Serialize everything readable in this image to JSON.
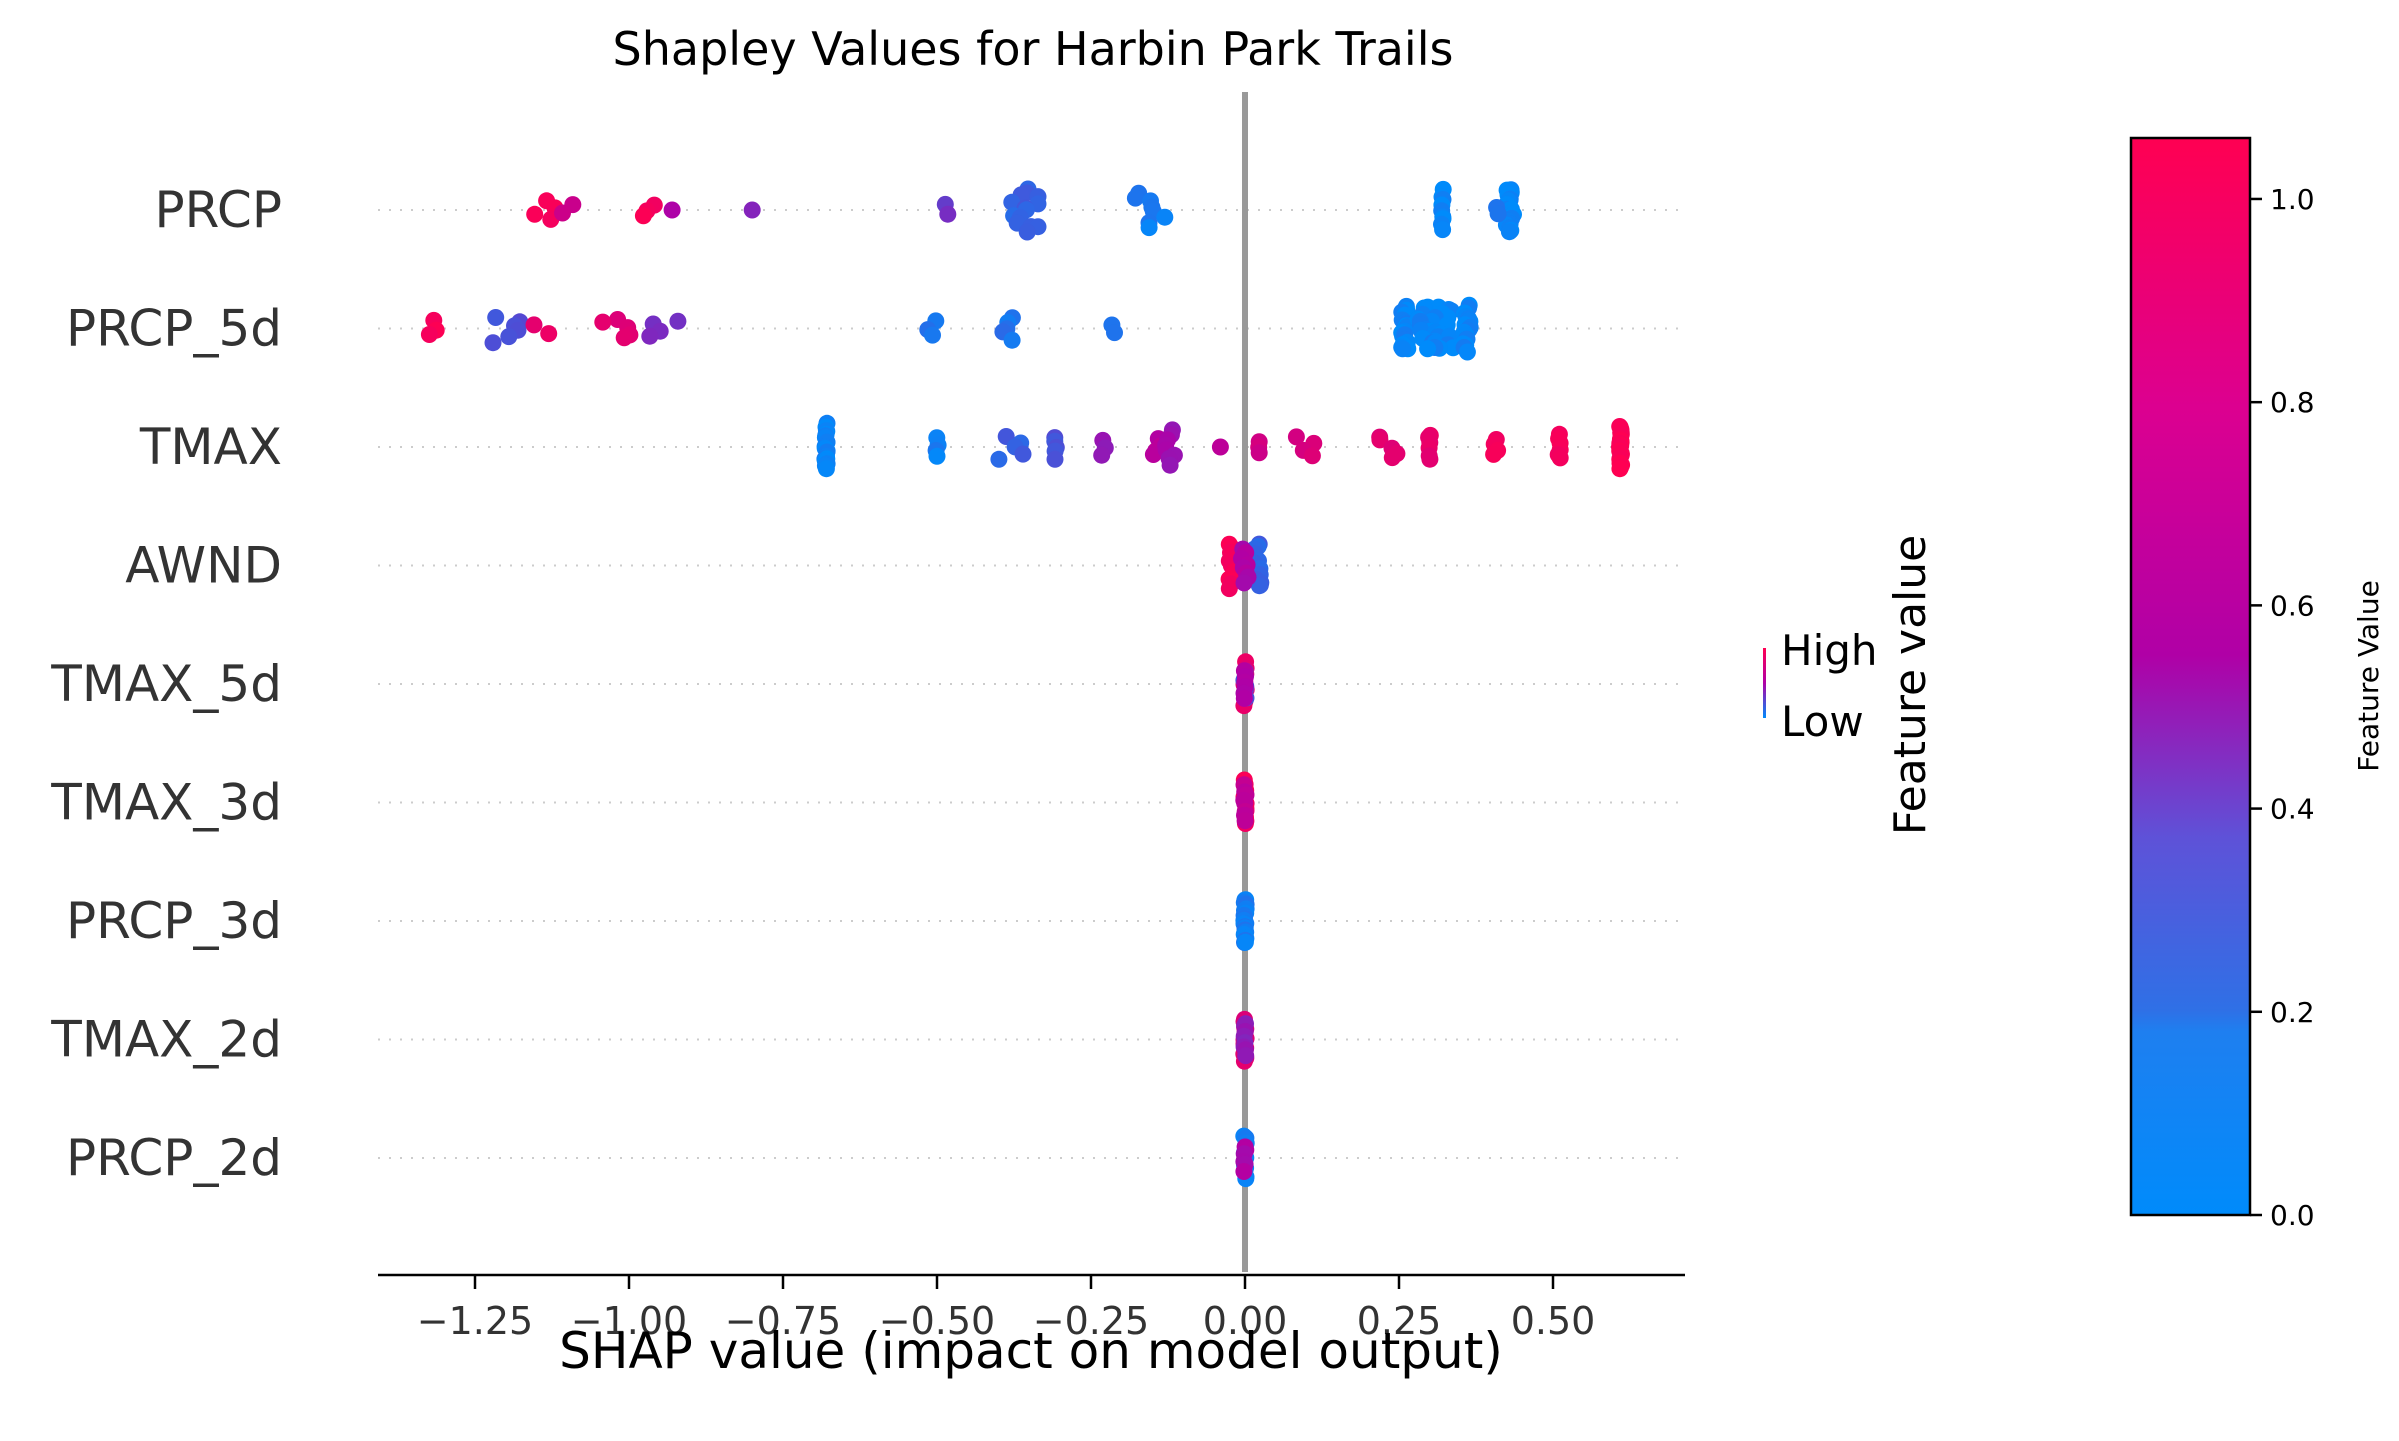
{
  "chart_data": {
    "type": "scatter",
    "title": "Shapley Values for Harbin Park Trails",
    "xlabel": "SHAP value (impact on model output)",
    "xlim": [
      -1.42,
      0.71
    ],
    "xticks": [
      -1.25,
      -1.0,
      -0.75,
      -0.5,
      -0.25,
      0.0,
      0.25,
      0.5
    ],
    "xtick_labels": [
      "−1.25",
      "−1.00",
      "−0.75",
      "−0.50",
      "−0.25",
      "0.00",
      "0.25",
      "0.50"
    ],
    "grid": "dotted horizontal lines per feature",
    "legend": {
      "high_label": "High",
      "low_label": "Low",
      "title": "Feature value",
      "placement": "right"
    },
    "colorbar": {
      "label": "Feature Value",
      "min": 0.0,
      "max": 1.06,
      "ticks": [
        0.0,
        0.2,
        0.4,
        0.6,
        0.8,
        1.0
      ],
      "tick_labels": [
        "0.0",
        "0.2",
        "0.4",
        "0.6",
        "0.8",
        "1.0"
      ],
      "low_color": "#008bfb",
      "mid_color": "#b000a6",
      "high_color": "#ff0052"
    },
    "features": [
      {
        "name": "PRCP",
        "groups": [
          {
            "x": -1.14,
            "v": 0.95,
            "n": 4,
            "s": 0.02
          },
          {
            "x": -1.1,
            "v": 0.65,
            "n": 2,
            "s": 0.015
          },
          {
            "x": -0.97,
            "v": 0.95,
            "n": 3,
            "s": 0.015
          },
          {
            "x": -0.93,
            "v": 0.5,
            "n": 1,
            "s": 0
          },
          {
            "x": -0.8,
            "v": 0.35,
            "n": 1,
            "s": 0
          },
          {
            "x": -0.48,
            "v": 0.3,
            "n": 2,
            "s": 0.01
          },
          {
            "x": -0.35,
            "v": 0.15,
            "n": 14,
            "s": 0.035
          },
          {
            "x": -0.16,
            "v": 0.05,
            "n": 8,
            "s": 0.03
          },
          {
            "x": 0.32,
            "v": 0.02,
            "n": 9,
            "s": 0.002
          },
          {
            "x": 0.43,
            "v": 0.02,
            "n": 25,
            "s": 0.006
          },
          {
            "x": 0.41,
            "v": 0.05,
            "n": 2,
            "s": 0.004
          }
        ]
      },
      {
        "name": "PRCP_5d",
        "groups": [
          {
            "x": -1.31,
            "v": 0.95,
            "n": 3,
            "s": 0.015
          },
          {
            "x": -1.2,
            "v": 0.2,
            "n": 6,
            "s": 0.025
          },
          {
            "x": -1.14,
            "v": 0.85,
            "n": 2,
            "s": 0.015
          },
          {
            "x": -1.02,
            "v": 0.8,
            "n": 5,
            "s": 0.03
          },
          {
            "x": -0.94,
            "v": 0.35,
            "n": 4,
            "s": 0.03
          },
          {
            "x": -0.51,
            "v": 0.1,
            "n": 3,
            "s": 0.01
          },
          {
            "x": -0.39,
            "v": 0.08,
            "n": 5,
            "s": 0.02
          },
          {
            "x": -0.21,
            "v": 0.05,
            "n": 2,
            "s": 0.01
          },
          {
            "x": 0.26,
            "v": 0.02,
            "n": 20,
            "s": 0.006
          },
          {
            "x": 0.31,
            "v": 0.02,
            "n": 30,
            "s": 0.03
          },
          {
            "x": 0.36,
            "v": 0.02,
            "n": 20,
            "s": 0.006
          }
        ]
      },
      {
        "name": "TMAX",
        "groups": [
          {
            "x": -0.68,
            "v": 0.02,
            "n": 20,
            "s": 0.002
          },
          {
            "x": -0.5,
            "v": 0.05,
            "n": 4,
            "s": 0.002
          },
          {
            "x": -0.38,
            "v": 0.15,
            "n": 5,
            "s": 0.02
          },
          {
            "x": -0.31,
            "v": 0.2,
            "n": 5,
            "s": 0.004
          },
          {
            "x": -0.23,
            "v": 0.4,
            "n": 3,
            "s": 0.004
          },
          {
            "x": -0.14,
            "v": 0.55,
            "n": 4,
            "s": 0.01
          },
          {
            "x": -0.12,
            "v": 0.45,
            "n": 8,
            "s": 0.01
          },
          {
            "x": -0.04,
            "v": 0.6,
            "n": 1,
            "s": 0
          },
          {
            "x": 0.02,
            "v": 0.7,
            "n": 3,
            "s": 0.004
          },
          {
            "x": 0.1,
            "v": 0.75,
            "n": 4,
            "s": 0.02
          },
          {
            "x": 0.23,
            "v": 0.8,
            "n": 5,
            "s": 0.02
          },
          {
            "x": 0.3,
            "v": 0.85,
            "n": 6,
            "s": 0.002
          },
          {
            "x": 0.41,
            "v": 0.95,
            "n": 4,
            "s": 0.01
          },
          {
            "x": 0.51,
            "v": 0.95,
            "n": 6,
            "s": 0.002
          },
          {
            "x": 0.61,
            "v": 1.0,
            "n": 25,
            "s": 0.002
          }
        ]
      },
      {
        "name": "AWND",
        "groups": [
          {
            "x": -0.02,
            "v": 0.95,
            "n": 16,
            "s": 0.006
          },
          {
            "x": 0.02,
            "v": 0.15,
            "n": 14,
            "s": 0.006
          },
          {
            "x": 0.0,
            "v": 0.5,
            "n": 8,
            "s": 0.008
          }
        ]
      },
      {
        "name": "TMAX_5d",
        "groups": [
          {
            "x": 0.0,
            "v": 0.85,
            "n": 10,
            "s": 0.002
          },
          {
            "x": 0.0,
            "v": 0.2,
            "n": 6,
            "s": 0.002
          },
          {
            "x": 0.0,
            "v": 0.5,
            "n": 6,
            "s": 0.002
          }
        ]
      },
      {
        "name": "TMAX_3d",
        "groups": [
          {
            "x": 0.0,
            "v": 0.95,
            "n": 14,
            "s": 0.002
          },
          {
            "x": 0.0,
            "v": 0.6,
            "n": 8,
            "s": 0.002
          }
        ]
      },
      {
        "name": "PRCP_3d",
        "groups": [
          {
            "x": 0.0,
            "v": 0.05,
            "n": 22,
            "s": 0.002
          }
        ]
      },
      {
        "name": "TMAX_2d",
        "groups": [
          {
            "x": 0.0,
            "v": 0.8,
            "n": 12,
            "s": 0.002
          },
          {
            "x": 0.0,
            "v": 0.4,
            "n": 8,
            "s": 0.002
          }
        ]
      },
      {
        "name": "PRCP_2d",
        "groups": [
          {
            "x": 0.0,
            "v": 0.05,
            "n": 12,
            "s": 0.002
          },
          {
            "x": 0.0,
            "v": 0.5,
            "n": 6,
            "s": 0.002
          }
        ]
      }
    ]
  }
}
